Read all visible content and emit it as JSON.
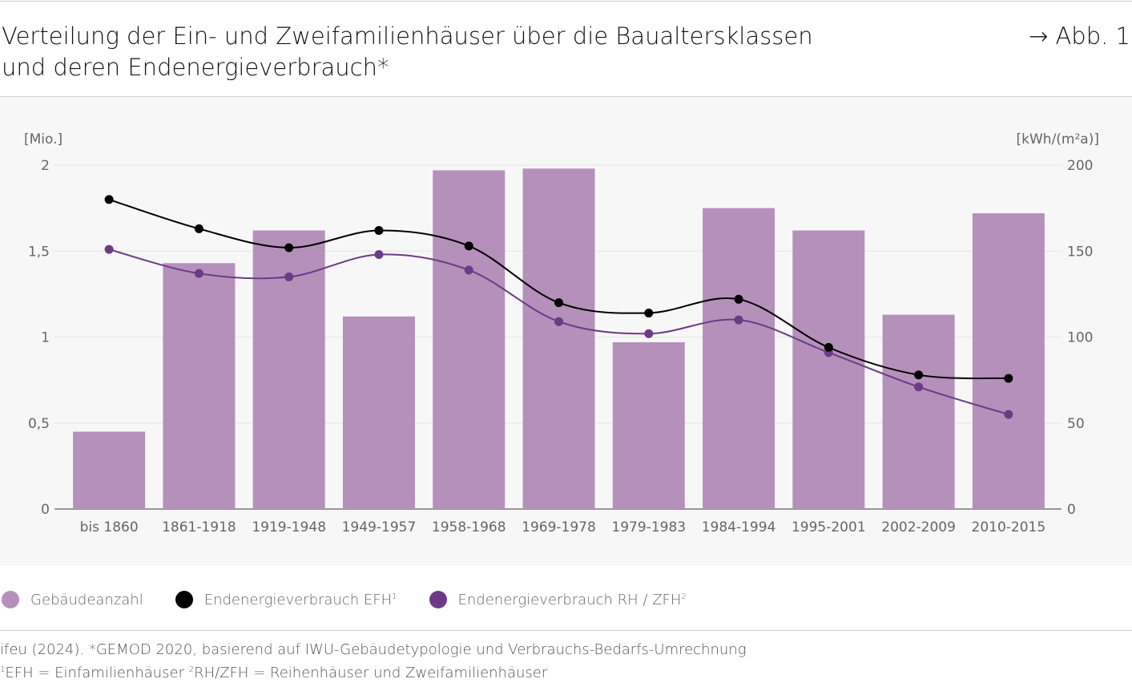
{
  "header": {
    "title_line1": "Verteilung der Ein- und Zweifamilienhäuser über die Baualtersklassen",
    "title_line2": "und deren Endenergieverbrauch*",
    "figure_ref": "→ Abb. 1"
  },
  "chart_data": {
    "type": "bar",
    "categories": [
      "bis 1860",
      "1861-1918",
      "1919-1948",
      "1949-1957",
      "1958-1968",
      "1969-1978",
      "1979-1983",
      "1984-1994",
      "1995-2001",
      "2002-2009",
      "2010-2015"
    ],
    "left_axis": {
      "unit_label": "[Mio.]",
      "ylim": [
        0,
        2
      ],
      "ticks": [
        0,
        0.5,
        1,
        1.5,
        2
      ],
      "tick_labels": [
        "0",
        "0,5",
        "1",
        "1,5",
        "2"
      ]
    },
    "right_axis": {
      "unit_label": "[kWh/(m²a)]",
      "ylim": [
        0,
        200
      ],
      "ticks": [
        0,
        50,
        100,
        150,
        200
      ],
      "tick_labels": [
        "0",
        "50",
        "100",
        "150",
        "200"
      ]
    },
    "series": [
      {
        "name": "Gebäudeanzahl",
        "type": "bar",
        "axis": "left",
        "color": "#b590bb",
        "values": [
          0.45,
          1.43,
          1.62,
          1.12,
          1.97,
          1.98,
          0.97,
          1.75,
          1.62,
          1.13,
          1.72
        ]
      },
      {
        "name": "Endenergieverbrauch EFH",
        "name_sup": "1",
        "type": "line",
        "axis": "right",
        "color": "#000000",
        "values": [
          180,
          163,
          152,
          162,
          153,
          120,
          114,
          122,
          94,
          78,
          76
        ]
      },
      {
        "name": "Endenergieverbrauch RH / ZFH",
        "name_sup": "2",
        "type": "line",
        "axis": "right",
        "color": "#6b3b86",
        "values": [
          151,
          137,
          135,
          148,
          139,
          109,
          102,
          110,
          91,
          71,
          55
        ]
      }
    ],
    "grid": true,
    "legend_position": "bottom-left"
  },
  "source": {
    "line1": "ifeu (2024). *GEMOD 2020, basierend auf IWU-Gebäudetypologie und Verbrauchs-Bedarfs-Umrechnung",
    "line2_sup1": "1",
    "line2_part1": "EFH = Einfamilienhäuser ",
    "line2_sup2": "2",
    "line2_part2": "RH/ZFH = Reihenhäuser und Zweifamilienhäuser"
  }
}
